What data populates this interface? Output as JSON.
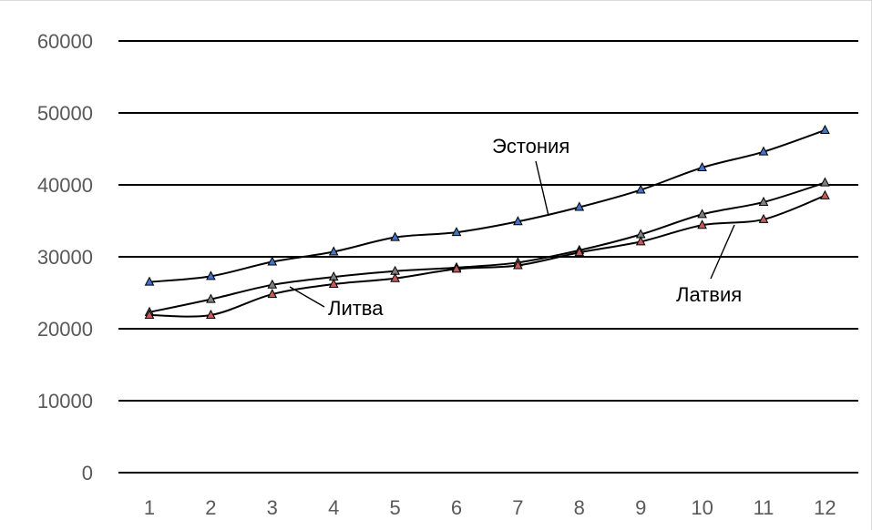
{
  "chart_data": {
    "type": "line",
    "x": [
      1,
      2,
      3,
      4,
      5,
      6,
      7,
      8,
      9,
      10,
      11,
      12
    ],
    "ylim": [
      0,
      60000
    ],
    "yticks": [
      0,
      10000,
      20000,
      30000,
      40000,
      50000,
      60000
    ],
    "grid": true,
    "legend": "none",
    "title": "",
    "xlabel": "",
    "ylabel": "",
    "series": [
      {
        "name": "Эстония",
        "marker_color": "#4472c4",
        "values": [
          26500,
          27300,
          29300,
          30700,
          32700,
          33400,
          34900,
          36900,
          39300,
          42400,
          44600,
          47600
        ]
      },
      {
        "name": "Литва",
        "marker_color": "#808080",
        "values": [
          22300,
          24100,
          26100,
          27200,
          28000,
          28500,
          29200,
          30900,
          33100,
          35900,
          37600,
          40300
        ]
      },
      {
        "name": "Латвия",
        "marker_color": "#c55a5a",
        "values": [
          21900,
          21900,
          24800,
          26200,
          27000,
          28300,
          28800,
          30600,
          32100,
          34400,
          35200,
          38500
        ]
      }
    ]
  }
}
